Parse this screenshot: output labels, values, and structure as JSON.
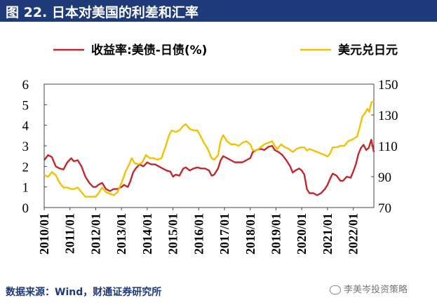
{
  "figure": {
    "title": "图 22.  日本对美国的利差和汇率",
    "source": "数据来源：Wind，财通证券研究所",
    "watermark": "李美岑投资策略"
  },
  "colors": {
    "title_bg": "#1f3a78",
    "spread": "#c0282d",
    "fx": "#f2c200",
    "axis": "#444444"
  },
  "chart_data": {
    "type": "line",
    "legend_position": "top",
    "x_tick_labels": [
      "2010/01",
      "2011/01",
      "2012/01",
      "2013/01",
      "2014/01",
      "2015/01",
      "2016/01",
      "2017/01",
      "2018/01",
      "2019/01",
      "2020/01",
      "2021/01",
      "2022/01"
    ],
    "x_range": [
      2010.0,
      2022.8
    ],
    "y_left": {
      "ticks": [
        "0",
        "1",
        "2",
        "3",
        "4",
        "5",
        "6"
      ],
      "range": [
        0,
        6
      ]
    },
    "y_right": {
      "ticks": [
        "70",
        "90",
        "110",
        "130",
        "150"
      ],
      "range": [
        70,
        150
      ]
    },
    "grid": false,
    "series": [
      {
        "name": "收益率:美债-日债(%)",
        "axis": "left",
        "color": "#c0282d",
        "points": [
          [
            2010.0,
            2.3
          ],
          [
            2010.15,
            2.55
          ],
          [
            2010.3,
            2.45
          ],
          [
            2010.45,
            2.0
          ],
          [
            2010.6,
            1.9
          ],
          [
            2010.75,
            1.85
          ],
          [
            2010.9,
            2.2
          ],
          [
            2011.05,
            2.4
          ],
          [
            2011.15,
            2.25
          ],
          [
            2011.3,
            2.3
          ],
          [
            2011.45,
            2.0
          ],
          [
            2011.6,
            1.5
          ],
          [
            2011.75,
            1.2
          ],
          [
            2011.9,
            1.0
          ],
          [
            2012.0,
            1.0
          ],
          [
            2012.1,
            1.1
          ],
          [
            2012.25,
            1.2
          ],
          [
            2012.4,
            0.9
          ],
          [
            2012.55,
            0.8
          ],
          [
            2012.7,
            0.9
          ],
          [
            2012.85,
            0.9
          ],
          [
            2013.0,
            1.0
          ],
          [
            2013.1,
            1.1
          ],
          [
            2013.25,
            1.0
          ],
          [
            2013.35,
            1.3
          ],
          [
            2013.45,
            1.7
          ],
          [
            2013.55,
            1.9
          ],
          [
            2013.7,
            2.1
          ],
          [
            2013.85,
            2.0
          ],
          [
            2014.0,
            2.2
          ],
          [
            2014.15,
            2.1
          ],
          [
            2014.3,
            2.1
          ],
          [
            2014.45,
            2.0
          ],
          [
            2014.6,
            1.9
          ],
          [
            2014.75,
            1.8
          ],
          [
            2014.9,
            1.75
          ],
          [
            2015.0,
            1.5
          ],
          [
            2015.1,
            1.6
          ],
          [
            2015.25,
            1.55
          ],
          [
            2015.4,
            1.9
          ],
          [
            2015.5,
            1.95
          ],
          [
            2015.65,
            1.8
          ],
          [
            2015.8,
            1.9
          ],
          [
            2015.95,
            1.95
          ],
          [
            2016.1,
            1.9
          ],
          [
            2016.25,
            1.9
          ],
          [
            2016.4,
            1.8
          ],
          [
            2016.5,
            1.55
          ],
          [
            2016.6,
            1.6
          ],
          [
            2016.75,
            1.9
          ],
          [
            2016.85,
            2.3
          ],
          [
            2016.95,
            2.5
          ],
          [
            2017.1,
            2.4
          ],
          [
            2017.25,
            2.3
          ],
          [
            2017.4,
            2.2
          ],
          [
            2017.55,
            2.2
          ],
          [
            2017.7,
            2.2
          ],
          [
            2017.85,
            2.3
          ],
          [
            2018.0,
            2.4
          ],
          [
            2018.1,
            2.7
          ],
          [
            2018.25,
            2.8
          ],
          [
            2018.4,
            2.85
          ],
          [
            2018.55,
            2.8
          ],
          [
            2018.7,
            2.95
          ],
          [
            2018.85,
            3.0
          ],
          [
            2018.95,
            2.8
          ],
          [
            2019.1,
            2.7
          ],
          [
            2019.25,
            2.55
          ],
          [
            2019.4,
            2.3
          ],
          [
            2019.55,
            2.0
          ],
          [
            2019.65,
            1.7
          ],
          [
            2019.75,
            1.8
          ],
          [
            2019.9,
            1.9
          ],
          [
            2020.0,
            1.8
          ],
          [
            2020.1,
            1.6
          ],
          [
            2020.2,
            0.9
          ],
          [
            2020.3,
            0.7
          ],
          [
            2020.45,
            0.7
          ],
          [
            2020.6,
            0.6
          ],
          [
            2020.75,
            0.7
          ],
          [
            2020.9,
            0.9
          ],
          [
            2021.0,
            1.1
          ],
          [
            2021.1,
            1.4
          ],
          [
            2021.2,
            1.65
          ],
          [
            2021.35,
            1.55
          ],
          [
            2021.5,
            1.3
          ],
          [
            2021.6,
            1.3
          ],
          [
            2021.75,
            1.5
          ],
          [
            2021.9,
            1.45
          ],
          [
            2022.0,
            1.75
          ],
          [
            2022.1,
            2.1
          ],
          [
            2022.2,
            2.6
          ],
          [
            2022.3,
            2.9
          ],
          [
            2022.4,
            3.05
          ],
          [
            2022.5,
            2.8
          ],
          [
            2022.6,
            2.9
          ],
          [
            2022.7,
            3.3
          ],
          [
            2022.8,
            2.7
          ]
        ]
      },
      {
        "name": "美元兑日元",
        "axis": "right",
        "color": "#f2c200",
        "points": [
          [
            2010.0,
            91
          ],
          [
            2010.15,
            90
          ],
          [
            2010.3,
            93
          ],
          [
            2010.45,
            91
          ],
          [
            2010.6,
            86
          ],
          [
            2010.75,
            83
          ],
          [
            2010.9,
            83
          ],
          [
            2011.05,
            82
          ],
          [
            2011.15,
            82
          ],
          [
            2011.3,
            83
          ],
          [
            2011.45,
            80
          ],
          [
            2011.6,
            77
          ],
          [
            2011.75,
            77
          ],
          [
            2011.9,
            77
          ],
          [
            2012.0,
            77
          ],
          [
            2012.1,
            79
          ],
          [
            2012.25,
            83
          ],
          [
            2012.4,
            80
          ],
          [
            2012.55,
            79
          ],
          [
            2012.7,
            78
          ],
          [
            2012.85,
            80
          ],
          [
            2012.95,
            84
          ],
          [
            2013.05,
            88
          ],
          [
            2013.15,
            93
          ],
          [
            2013.3,
            98
          ],
          [
            2013.4,
            102
          ],
          [
            2013.5,
            99
          ],
          [
            2013.65,
            98
          ],
          [
            2013.8,
            99
          ],
          [
            2013.95,
            104
          ],
          [
            2014.1,
            102
          ],
          [
            2014.25,
            102
          ],
          [
            2014.4,
            101
          ],
          [
            2014.55,
            102
          ],
          [
            2014.7,
            109
          ],
          [
            2014.85,
            117
          ],
          [
            2014.95,
            120
          ],
          [
            2015.1,
            119
          ],
          [
            2015.25,
            120
          ],
          [
            2015.4,
            123
          ],
          [
            2015.5,
            124
          ],
          [
            2015.65,
            121
          ],
          [
            2015.8,
            120
          ],
          [
            2015.95,
            120
          ],
          [
            2016.05,
            117
          ],
          [
            2016.2,
            112
          ],
          [
            2016.35,
            108
          ],
          [
            2016.5,
            102
          ],
          [
            2016.6,
            101
          ],
          [
            2016.75,
            104
          ],
          [
            2016.85,
            113
          ],
          [
            2016.95,
            117
          ],
          [
            2017.1,
            113
          ],
          [
            2017.25,
            111
          ],
          [
            2017.4,
            111
          ],
          [
            2017.55,
            110
          ],
          [
            2017.7,
            112
          ],
          [
            2017.85,
            113
          ],
          [
            2018.0,
            111
          ],
          [
            2018.1,
            107
          ],
          [
            2018.25,
            107
          ],
          [
            2018.4,
            109
          ],
          [
            2018.55,
            111
          ],
          [
            2018.7,
            112
          ],
          [
            2018.85,
            113
          ],
          [
            2018.95,
            110
          ],
          [
            2019.05,
            108
          ],
          [
            2019.2,
            111
          ],
          [
            2019.35,
            109
          ],
          [
            2019.5,
            108
          ],
          [
            2019.65,
            106
          ],
          [
            2019.8,
            108
          ],
          [
            2019.95,
            109
          ],
          [
            2020.1,
            109
          ],
          [
            2020.2,
            107
          ],
          [
            2020.3,
            108
          ],
          [
            2020.45,
            107
          ],
          [
            2020.6,
            106
          ],
          [
            2020.75,
            105
          ],
          [
            2020.9,
            104
          ],
          [
            2021.0,
            103
          ],
          [
            2021.1,
            105
          ],
          [
            2021.2,
            109
          ],
          [
            2021.35,
            109
          ],
          [
            2021.5,
            110
          ],
          [
            2021.65,
            110
          ],
          [
            2021.8,
            113
          ],
          [
            2021.95,
            114
          ],
          [
            2022.05,
            115
          ],
          [
            2022.15,
            116
          ],
          [
            2022.25,
            122
          ],
          [
            2022.35,
            129
          ],
          [
            2022.45,
            131
          ],
          [
            2022.55,
            134
          ],
          [
            2022.62,
            132
          ],
          [
            2022.7,
            138
          ],
          [
            2022.8,
            139
          ]
        ]
      }
    ]
  }
}
